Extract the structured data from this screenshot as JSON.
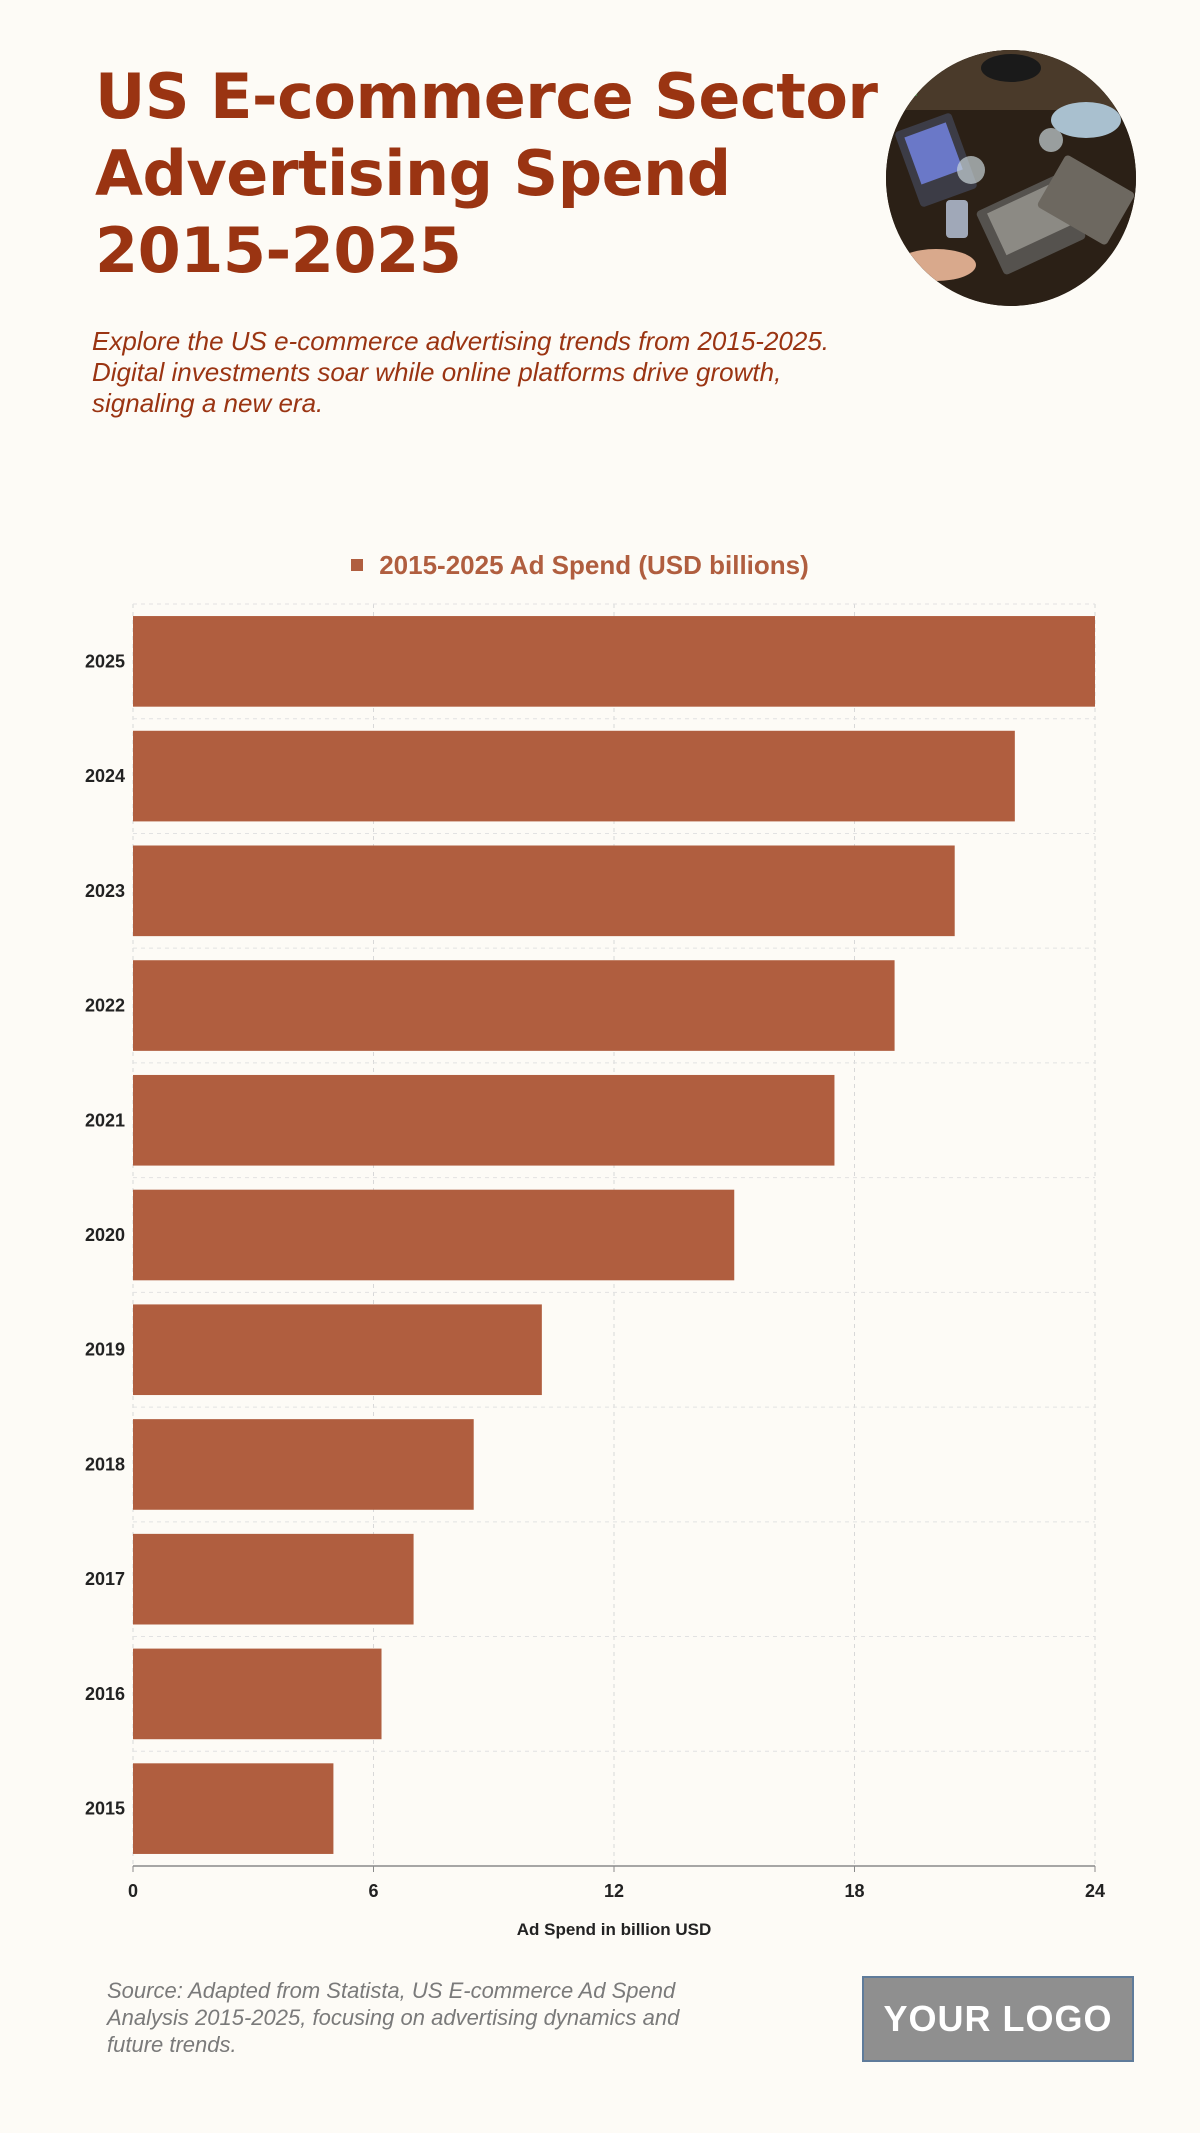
{
  "header": {
    "title": "US E-commerce Sector Advertising Spend 2015-2025",
    "subtitle": "Explore the US e-commerce advertising trends from 2015-2025. Digital investments soar while online platforms drive growth, signaling a new era."
  },
  "photo": {
    "icon": "people-with-laptops-photo"
  },
  "legend": {
    "label": "2015-2025 Ad Spend (USD billions)"
  },
  "footer": {
    "source": "Source: Adapted from Statista, US E-commerce Ad Spend Analysis 2015-2025, focusing on advertising dynamics and future trends.",
    "logo": "YOUR LOGO"
  },
  "colors": {
    "accent": "#9a3412",
    "bar": "#b05e3f",
    "background": "#fdfbf6"
  },
  "chart_data": {
    "type": "bar",
    "orientation": "horizontal",
    "categories": [
      "2025",
      "2024",
      "2023",
      "2022",
      "2021",
      "2020",
      "2019",
      "2018",
      "2017",
      "2016",
      "2015"
    ],
    "series": [
      {
        "name": "2015-2025 Ad Spend (USD billions)",
        "values": [
          24.0,
          22.0,
          20.5,
          19.0,
          17.5,
          15.0,
          10.2,
          8.5,
          7.0,
          6.2,
          5.0
        ]
      }
    ],
    "xlabel": "Ad Spend in billion USD",
    "ylabel": "",
    "xlim": [
      0,
      24
    ],
    "xticks": [
      0,
      6,
      12,
      18,
      24
    ],
    "grid": true,
    "legend": "top-center"
  }
}
